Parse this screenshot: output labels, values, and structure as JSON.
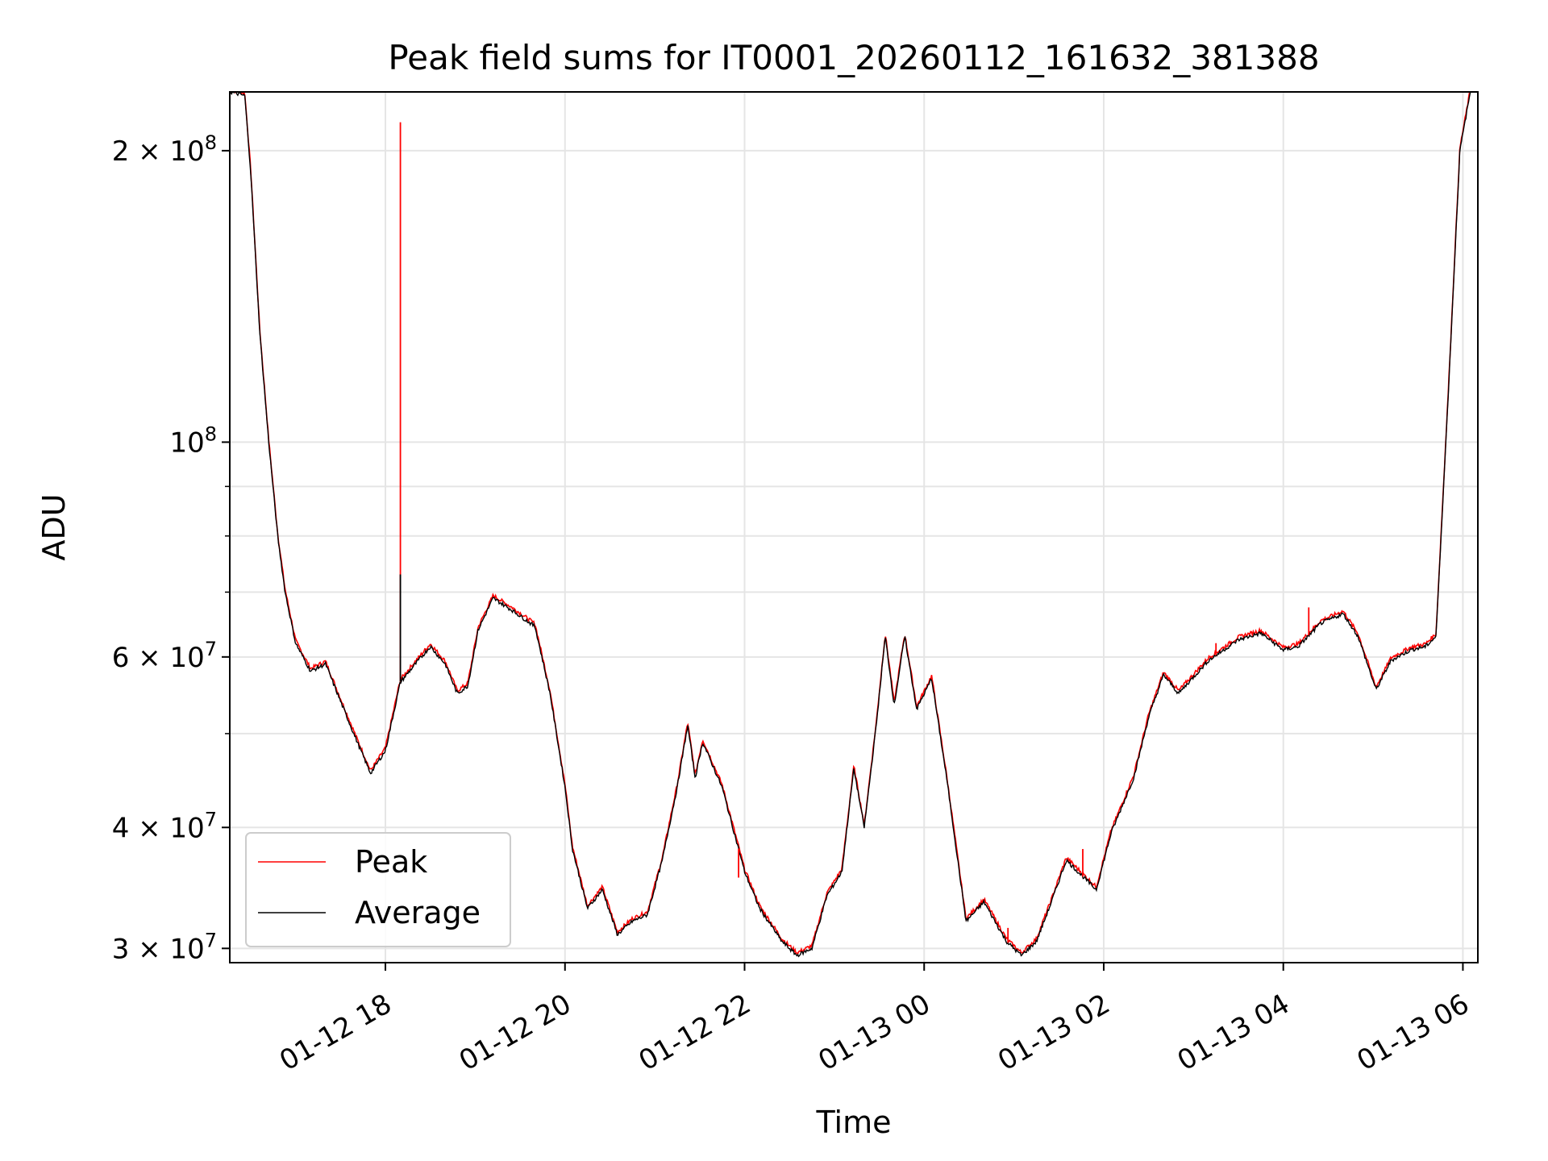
{
  "chart_data": {
    "type": "line",
    "title": "Peak field sums for IT0001_20260112_161632_381388",
    "xlabel": "Time",
    "ylabel": "ADU",
    "yscale": "log",
    "grid": true,
    "legend_position": "lower-left",
    "xlim": [
      "2026-01-12 16:16",
      "2026-01-13 06:10"
    ],
    "ylim": [
      29000000,
      230000000
    ],
    "x_ticks": [
      {
        "value": "2026-01-12 18:00",
        "label": "01-12 18"
      },
      {
        "value": "2026-01-12 20:00",
        "label": "01-12 20"
      },
      {
        "value": "2026-01-12 22:00",
        "label": "01-12 22"
      },
      {
        "value": "2026-01-13 00:00",
        "label": "01-13 00"
      },
      {
        "value": "2026-01-13 02:00",
        "label": "01-13 02"
      },
      {
        "value": "2026-01-13 04:00",
        "label": "01-13 04"
      },
      {
        "value": "2026-01-13 06:00",
        "label": "01-13 06"
      }
    ],
    "y_ticks": [
      {
        "value": 30000000,
        "mantissa": "3",
        "exp": "7"
      },
      {
        "value": 40000000,
        "mantissa": "4",
        "exp": "7"
      },
      {
        "value": 60000000,
        "mantissa": "6",
        "exp": "7"
      },
      {
        "value": 100000000,
        "mantissa": "",
        "exp": "8"
      },
      {
        "value": 200000000,
        "mantissa": "2",
        "exp": "8"
      }
    ],
    "y_minor_ticks": [
      50000000,
      70000000,
      80000000,
      90000000
    ],
    "series": [
      {
        "name": "Peak",
        "color": "#ff0000",
        "spikes": [
          {
            "x": "2026-01-12 18:10",
            "y": 214000000
          },
          {
            "x": "2026-01-12 21:56",
            "y": 35500000
          },
          {
            "x": "2026-01-13 00:56",
            "y": 31500000
          },
          {
            "x": "2026-01-13 01:46",
            "y": 38000000
          },
          {
            "x": "2026-01-13 03:15",
            "y": 62000000
          },
          {
            "x": "2026-01-13 04:17",
            "y": 67500000
          }
        ]
      },
      {
        "name": "Average",
        "color": "#000000",
        "points": [
          [
            "2026-01-12 16:16",
            230000000
          ],
          [
            "2026-01-12 16:26",
            228000000
          ],
          [
            "2026-01-12 16:30",
            190000000
          ],
          [
            "2026-01-12 16:36",
            130000000
          ],
          [
            "2026-01-12 16:42",
            100000000
          ],
          [
            "2026-01-12 16:48",
            80000000
          ],
          [
            "2026-01-12 16:53",
            70000000
          ],
          [
            "2026-01-12 17:00",
            62000000
          ],
          [
            "2026-01-12 17:10",
            58000000
          ],
          [
            "2026-01-12 17:20",
            59000000
          ],
          [
            "2026-01-12 17:30",
            54000000
          ],
          [
            "2026-01-12 17:40",
            49500000
          ],
          [
            "2026-01-12 17:50",
            45500000
          ],
          [
            "2026-01-12 18:00",
            48000000
          ],
          [
            "2026-01-12 18:10",
            56500000
          ],
          [
            "2026-01-12 18:20",
            59000000
          ],
          [
            "2026-01-12 18:30",
            61500000
          ],
          [
            "2026-01-12 18:40",
            59000000
          ],
          [
            "2026-01-12 18:48",
            55000000
          ],
          [
            "2026-01-12 18:55",
            56000000
          ],
          [
            "2026-01-12 19:02",
            64000000
          ],
          [
            "2026-01-12 19:12",
            69000000
          ],
          [
            "2026-01-12 19:25",
            67000000
          ],
          [
            "2026-01-12 19:40",
            64500000
          ],
          [
            "2026-01-12 19:50",
            55000000
          ],
          [
            "2026-01-12 20:00",
            44000000
          ],
          [
            "2026-01-12 20:05",
            38000000
          ],
          [
            "2026-01-12 20:15",
            33000000
          ],
          [
            "2026-01-12 20:25",
            34500000
          ],
          [
            "2026-01-12 20:35",
            31000000
          ],
          [
            "2026-01-12 20:45",
            32000000
          ],
          [
            "2026-01-12 20:55",
            32500000
          ],
          [
            "2026-01-12 21:05",
            37000000
          ],
          [
            "2026-01-12 21:15",
            44000000
          ],
          [
            "2026-01-12 21:22",
            51000000
          ],
          [
            "2026-01-12 21:27",
            45000000
          ],
          [
            "2026-01-12 21:32",
            49000000
          ],
          [
            "2026-01-12 21:45",
            44000000
          ],
          [
            "2026-01-12 22:00",
            36000000
          ],
          [
            "2026-01-12 22:10",
            33000000
          ],
          [
            "2026-01-12 22:25",
            30500000
          ],
          [
            "2026-01-12 22:35",
            29500000
          ],
          [
            "2026-01-12 22:45",
            30000000
          ],
          [
            "2026-01-12 22:55",
            34000000
          ],
          [
            "2026-01-12 23:05",
            36000000
          ],
          [
            "2026-01-12 23:13",
            46000000
          ],
          [
            "2026-01-12 23:20",
            40000000
          ],
          [
            "2026-01-12 23:28",
            51000000
          ],
          [
            "2026-01-12 23:34",
            63000000
          ],
          [
            "2026-01-12 23:40",
            53500000
          ],
          [
            "2026-01-12 23:47",
            63000000
          ],
          [
            "2026-01-12 23:55",
            53000000
          ],
          [
            "2026-01-13 00:05",
            57000000
          ],
          [
            "2026-01-13 00:15",
            45000000
          ],
          [
            "2026-01-13 00:28",
            32000000
          ],
          [
            "2026-01-13 00:40",
            33500000
          ],
          [
            "2026-01-13 00:55",
            30500000
          ],
          [
            "2026-01-13 01:05",
            29500000
          ],
          [
            "2026-01-13 01:15",
            30500000
          ],
          [
            "2026-01-13 01:25",
            33500000
          ],
          [
            "2026-01-13 01:35",
            37000000
          ],
          [
            "2026-01-13 01:55",
            34500000
          ],
          [
            "2026-01-13 02:05",
            39500000
          ],
          [
            "2026-01-13 02:20",
            45000000
          ],
          [
            "2026-01-13 02:30",
            52000000
          ],
          [
            "2026-01-13 02:40",
            57500000
          ],
          [
            "2026-01-13 02:50",
            55000000
          ],
          [
            "2026-01-13 03:10",
            59500000
          ],
          [
            "2026-01-13 03:30",
            62500000
          ],
          [
            "2026-01-13 03:45",
            63500000
          ],
          [
            "2026-01-13 04:00",
            61000000
          ],
          [
            "2026-01-13 04:10",
            61500000
          ],
          [
            "2026-01-13 04:25",
            65000000
          ],
          [
            "2026-01-13 04:40",
            66500000
          ],
          [
            "2026-01-13 04:50",
            63000000
          ],
          [
            "2026-01-13 05:02",
            55500000
          ],
          [
            "2026-01-13 05:12",
            59500000
          ],
          [
            "2026-01-13 05:25",
            61000000
          ],
          [
            "2026-01-13 05:35",
            61500000
          ],
          [
            "2026-01-13 05:42",
            63000000
          ],
          [
            "2026-01-13 05:50",
            110000000
          ],
          [
            "2026-01-13 05:58",
            200000000
          ],
          [
            "2026-01-13 06:05",
            230000000
          ]
        ]
      }
    ]
  }
}
